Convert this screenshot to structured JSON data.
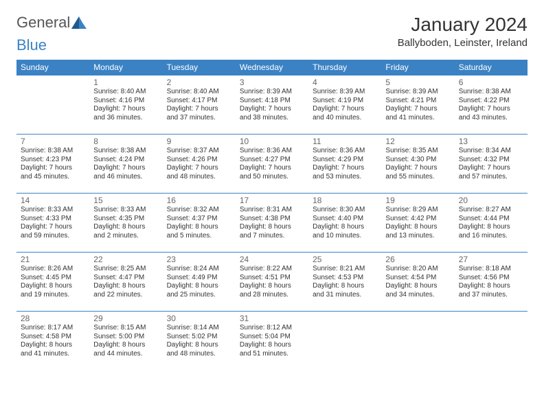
{
  "logo": {
    "text1": "General",
    "text2": "Blue"
  },
  "title": "January 2024",
  "location": "Ballyboden, Leinster, Ireland",
  "colors": {
    "header_bg": "#3b82c4",
    "header_text": "#ffffff",
    "border": "#3b82c4",
    "daynum": "#666666",
    "body_text": "#333333",
    "logo_general": "#555555",
    "logo_blue": "#3b82c4",
    "background": "#ffffff"
  },
  "fonts": {
    "title_size_pt": 21,
    "location_size_pt": 11,
    "header_size_pt": 9,
    "daynum_size_pt": 9,
    "info_size_pt": 7.5,
    "logo_size_pt": 16
  },
  "weekdays": [
    "Sunday",
    "Monday",
    "Tuesday",
    "Wednesday",
    "Thursday",
    "Friday",
    "Saturday"
  ],
  "weeks": [
    [
      null,
      {
        "n": "1",
        "sr": "Sunrise: 8:40 AM",
        "ss": "Sunset: 4:16 PM",
        "dl": "Daylight: 7 hours and 36 minutes."
      },
      {
        "n": "2",
        "sr": "Sunrise: 8:40 AM",
        "ss": "Sunset: 4:17 PM",
        "dl": "Daylight: 7 hours and 37 minutes."
      },
      {
        "n": "3",
        "sr": "Sunrise: 8:39 AM",
        "ss": "Sunset: 4:18 PM",
        "dl": "Daylight: 7 hours and 38 minutes."
      },
      {
        "n": "4",
        "sr": "Sunrise: 8:39 AM",
        "ss": "Sunset: 4:19 PM",
        "dl": "Daylight: 7 hours and 40 minutes."
      },
      {
        "n": "5",
        "sr": "Sunrise: 8:39 AM",
        "ss": "Sunset: 4:21 PM",
        "dl": "Daylight: 7 hours and 41 minutes."
      },
      {
        "n": "6",
        "sr": "Sunrise: 8:38 AM",
        "ss": "Sunset: 4:22 PM",
        "dl": "Daylight: 7 hours and 43 minutes."
      }
    ],
    [
      {
        "n": "7",
        "sr": "Sunrise: 8:38 AM",
        "ss": "Sunset: 4:23 PM",
        "dl": "Daylight: 7 hours and 45 minutes."
      },
      {
        "n": "8",
        "sr": "Sunrise: 8:38 AM",
        "ss": "Sunset: 4:24 PM",
        "dl": "Daylight: 7 hours and 46 minutes."
      },
      {
        "n": "9",
        "sr": "Sunrise: 8:37 AM",
        "ss": "Sunset: 4:26 PM",
        "dl": "Daylight: 7 hours and 48 minutes."
      },
      {
        "n": "10",
        "sr": "Sunrise: 8:36 AM",
        "ss": "Sunset: 4:27 PM",
        "dl": "Daylight: 7 hours and 50 minutes."
      },
      {
        "n": "11",
        "sr": "Sunrise: 8:36 AM",
        "ss": "Sunset: 4:29 PM",
        "dl": "Daylight: 7 hours and 53 minutes."
      },
      {
        "n": "12",
        "sr": "Sunrise: 8:35 AM",
        "ss": "Sunset: 4:30 PM",
        "dl": "Daylight: 7 hours and 55 minutes."
      },
      {
        "n": "13",
        "sr": "Sunrise: 8:34 AM",
        "ss": "Sunset: 4:32 PM",
        "dl": "Daylight: 7 hours and 57 minutes."
      }
    ],
    [
      {
        "n": "14",
        "sr": "Sunrise: 8:33 AM",
        "ss": "Sunset: 4:33 PM",
        "dl": "Daylight: 7 hours and 59 minutes."
      },
      {
        "n": "15",
        "sr": "Sunrise: 8:33 AM",
        "ss": "Sunset: 4:35 PM",
        "dl": "Daylight: 8 hours and 2 minutes."
      },
      {
        "n": "16",
        "sr": "Sunrise: 8:32 AM",
        "ss": "Sunset: 4:37 PM",
        "dl": "Daylight: 8 hours and 5 minutes."
      },
      {
        "n": "17",
        "sr": "Sunrise: 8:31 AM",
        "ss": "Sunset: 4:38 PM",
        "dl": "Daylight: 8 hours and 7 minutes."
      },
      {
        "n": "18",
        "sr": "Sunrise: 8:30 AM",
        "ss": "Sunset: 4:40 PM",
        "dl": "Daylight: 8 hours and 10 minutes."
      },
      {
        "n": "19",
        "sr": "Sunrise: 8:29 AM",
        "ss": "Sunset: 4:42 PM",
        "dl": "Daylight: 8 hours and 13 minutes."
      },
      {
        "n": "20",
        "sr": "Sunrise: 8:27 AM",
        "ss": "Sunset: 4:44 PM",
        "dl": "Daylight: 8 hours and 16 minutes."
      }
    ],
    [
      {
        "n": "21",
        "sr": "Sunrise: 8:26 AM",
        "ss": "Sunset: 4:45 PM",
        "dl": "Daylight: 8 hours and 19 minutes."
      },
      {
        "n": "22",
        "sr": "Sunrise: 8:25 AM",
        "ss": "Sunset: 4:47 PM",
        "dl": "Daylight: 8 hours and 22 minutes."
      },
      {
        "n": "23",
        "sr": "Sunrise: 8:24 AM",
        "ss": "Sunset: 4:49 PM",
        "dl": "Daylight: 8 hours and 25 minutes."
      },
      {
        "n": "24",
        "sr": "Sunrise: 8:22 AM",
        "ss": "Sunset: 4:51 PM",
        "dl": "Daylight: 8 hours and 28 minutes."
      },
      {
        "n": "25",
        "sr": "Sunrise: 8:21 AM",
        "ss": "Sunset: 4:53 PM",
        "dl": "Daylight: 8 hours and 31 minutes."
      },
      {
        "n": "26",
        "sr": "Sunrise: 8:20 AM",
        "ss": "Sunset: 4:54 PM",
        "dl": "Daylight: 8 hours and 34 minutes."
      },
      {
        "n": "27",
        "sr": "Sunrise: 8:18 AM",
        "ss": "Sunset: 4:56 PM",
        "dl": "Daylight: 8 hours and 37 minutes."
      }
    ],
    [
      {
        "n": "28",
        "sr": "Sunrise: 8:17 AM",
        "ss": "Sunset: 4:58 PM",
        "dl": "Daylight: 8 hours and 41 minutes."
      },
      {
        "n": "29",
        "sr": "Sunrise: 8:15 AM",
        "ss": "Sunset: 5:00 PM",
        "dl": "Daylight: 8 hours and 44 minutes."
      },
      {
        "n": "30",
        "sr": "Sunrise: 8:14 AM",
        "ss": "Sunset: 5:02 PM",
        "dl": "Daylight: 8 hours and 48 minutes."
      },
      {
        "n": "31",
        "sr": "Sunrise: 8:12 AM",
        "ss": "Sunset: 5:04 PM",
        "dl": "Daylight: 8 hours and 51 minutes."
      },
      null,
      null,
      null
    ]
  ]
}
